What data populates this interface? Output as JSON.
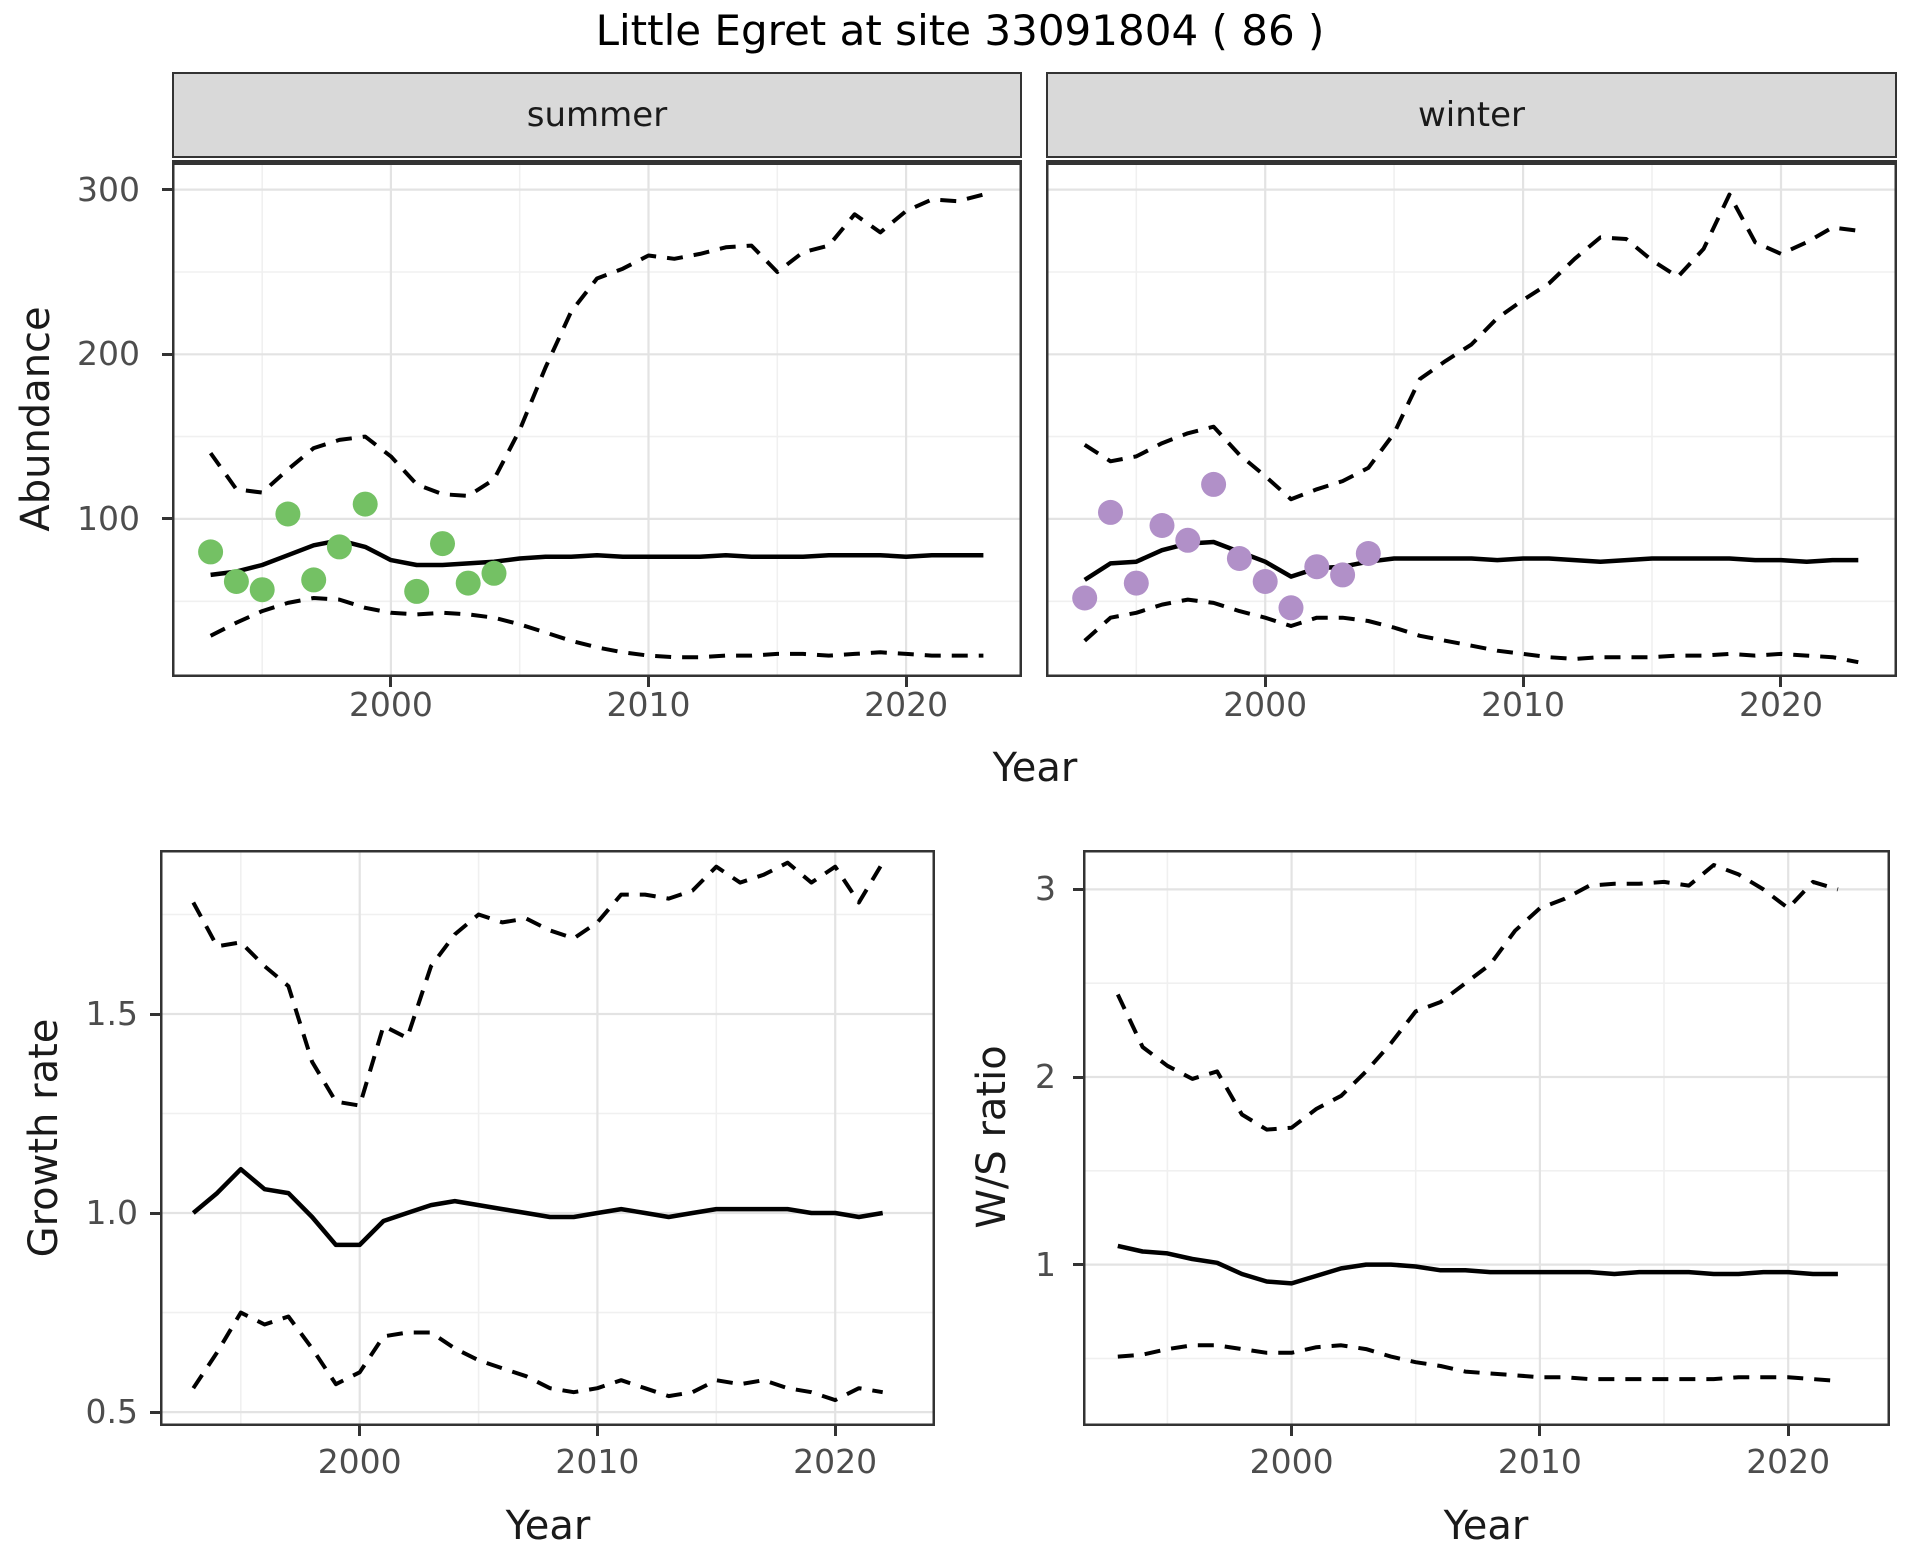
{
  "title": "Little Egret at site 33091804 ( 86 )",
  "axis": {
    "abundance_label": "Abundance",
    "year_label": "Year",
    "growth_label": "Growth rate",
    "ws_label": "W/S ratio"
  },
  "facets": {
    "summer_label": "summer",
    "winter_label": "winter"
  },
  "colors": {
    "summer_point": "#74c164",
    "winter_point": "#b190c8",
    "line": "#000000",
    "strip_bg": "#d9d9d9",
    "panel_border": "#333333",
    "grid_major": "#e3e3e3",
    "grid_minor": "#f0f0f0",
    "tick_text": "#4d4d4d"
  },
  "chart_data": [
    {
      "id": "abundance-summer",
      "type": "line",
      "facet": "summer",
      "title": "Little Egret abundance, summer facet",
      "xlabel": "Year",
      "ylabel": "Abundance",
      "xlim": [
        1991.5,
        2024.5
      ],
      "ylim": [
        4,
        318
      ],
      "x_ticks": {
        "values": [
          2000,
          2010,
          2020
        ],
        "labels": [
          "2000",
          "2010",
          "2020"
        ]
      },
      "y_ticks": {
        "values": [
          100,
          200,
          300
        ],
        "labels": [
          "100",
          "200",
          "300"
        ]
      },
      "x_minor": [
        1995,
        2005,
        2015
      ],
      "y_minor": [
        50,
        150,
        250
      ],
      "grid": true,
      "legend": "none",
      "x": [
        1993,
        1994,
        1995,
        1996,
        1997,
        1998,
        1999,
        2000,
        2001,
        2002,
        2003,
        2004,
        2005,
        2006,
        2007,
        2008,
        2009,
        2010,
        2011,
        2012,
        2013,
        2014,
        2015,
        2016,
        2017,
        2018,
        2019,
        2020,
        2021,
        2022,
        2023
      ],
      "series": [
        {
          "name": "mean",
          "style": "solid",
          "values": [
            66,
            68,
            72,
            78,
            84,
            87,
            83,
            75,
            72,
            72,
            73,
            74,
            76,
            77,
            77,
            78,
            77,
            77,
            77,
            77,
            78,
            77,
            77,
            77,
            78,
            78,
            78,
            77,
            78,
            78,
            78
          ]
        },
        {
          "name": "upper_ci",
          "style": "dashed",
          "values": [
            140,
            118,
            116,
            130,
            143,
            148,
            150,
            138,
            121,
            115,
            114,
            124,
            154,
            192,
            226,
            246,
            252,
            260,
            258,
            261,
            265,
            266,
            250,
            262,
            266,
            285,
            274,
            287,
            294,
            293,
            297
          ]
        },
        {
          "name": "lower_ci",
          "style": "dashed",
          "values": [
            29,
            37,
            44,
            49,
            52,
            51,
            46,
            43,
            42,
            43,
            42,
            40,
            36,
            31,
            26,
            22,
            19,
            17,
            16,
            16,
            17,
            17,
            18,
            18,
            17,
            18,
            19,
            18,
            17,
            17,
            17
          ]
        }
      ],
      "points": {
        "name": "observed_counts",
        "color": "#74c164",
        "x": [
          1993,
          1994,
          1995,
          1996,
          1997,
          1998,
          1999,
          2001,
          2002,
          2003,
          2004
        ],
        "y": [
          80,
          62,
          57,
          103,
          63,
          83,
          109,
          56,
          85,
          61,
          67
        ]
      }
    },
    {
      "id": "abundance-winter",
      "type": "line",
      "facet": "winter",
      "title": "Little Egret abundance, winter facet",
      "xlabel": "Year",
      "ylabel": "Abundance",
      "xlim": [
        1991.5,
        2024.5
      ],
      "ylim": [
        4,
        318
      ],
      "x_ticks": {
        "values": [
          2000,
          2010,
          2020
        ],
        "labels": [
          "2000",
          "2010",
          "2020"
        ]
      },
      "y_ticks": {
        "values": [
          100,
          200,
          300
        ],
        "labels": [
          "100",
          "200",
          "300"
        ]
      },
      "x_minor": [
        1995,
        2005,
        2015
      ],
      "y_minor": [
        50,
        150,
        250
      ],
      "grid": true,
      "legend": "none",
      "x": [
        1993,
        1994,
        1995,
        1996,
        1997,
        1998,
        1999,
        2000,
        2001,
        2002,
        2003,
        2004,
        2005,
        2006,
        2007,
        2008,
        2009,
        2010,
        2011,
        2012,
        2013,
        2014,
        2015,
        2016,
        2017,
        2018,
        2019,
        2020,
        2021,
        2022,
        2023
      ],
      "series": [
        {
          "name": "mean",
          "style": "solid",
          "values": [
            63,
            73,
            74,
            81,
            85,
            86,
            80,
            74,
            65,
            70,
            71,
            74,
            76,
            76,
            76,
            76,
            75,
            76,
            76,
            75,
            74,
            75,
            76,
            76,
            76,
            76,
            75,
            75,
            74,
            75,
            75
          ]
        },
        {
          "name": "upper_ci",
          "style": "dashed",
          "values": [
            145,
            135,
            138,
            146,
            152,
            156,
            139,
            126,
            112,
            118,
            123,
            131,
            152,
            185,
            196,
            206,
            222,
            233,
            243,
            258,
            271,
            270,
            257,
            247,
            264,
            297,
            268,
            261,
            268,
            277,
            275
          ]
        },
        {
          "name": "lower_ci",
          "style": "dashed",
          "values": [
            26,
            40,
            43,
            48,
            51,
            49,
            44,
            40,
            35,
            40,
            40,
            38,
            34,
            29,
            26,
            23,
            20,
            18,
            16,
            15,
            16,
            16,
            16,
            17,
            17,
            18,
            17,
            18,
            17,
            16,
            13
          ]
        }
      ],
      "points": {
        "name": "observed_counts",
        "color": "#b190c8",
        "x": [
          1993,
          1994,
          1995,
          1996,
          1997,
          1998,
          1999,
          2000,
          2001,
          2002,
          2003,
          2004
        ],
        "y": [
          52,
          104,
          61,
          96,
          87,
          121,
          76,
          62,
          46,
          71,
          66,
          79
        ]
      }
    },
    {
      "id": "growth-rate",
      "type": "line",
      "facet": null,
      "title": "Growth rate",
      "xlabel": "Year",
      "ylabel": "Growth rate",
      "xlim": [
        1991.6,
        2024.2
      ],
      "ylim": [
        0.465,
        1.912
      ],
      "x_ticks": {
        "values": [
          2000,
          2010,
          2020
        ],
        "labels": [
          "2000",
          "2010",
          "2020"
        ]
      },
      "y_ticks": {
        "values": [
          0.5,
          1.0,
          1.5
        ],
        "labels": [
          "0.5",
          "1.0",
          "1.5"
        ]
      },
      "x_minor": [
        1995,
        2005,
        2015
      ],
      "y_minor": [
        0.75,
        1.25,
        1.75
      ],
      "grid": true,
      "legend": "none",
      "x": [
        1993,
        1994,
        1995,
        1996,
        1997,
        1998,
        1999,
        2000,
        2001,
        2002,
        2003,
        2004,
        2005,
        2006,
        2007,
        2008,
        2009,
        2010,
        2011,
        2012,
        2013,
        2014,
        2015,
        2016,
        2017,
        2018,
        2019,
        2020,
        2021,
        2022
      ],
      "series": [
        {
          "name": "mean",
          "style": "solid",
          "values": [
            1.0,
            1.05,
            1.11,
            1.06,
            1.05,
            0.99,
            0.92,
            0.92,
            0.98,
            1.0,
            1.02,
            1.03,
            1.02,
            1.01,
            1.0,
            0.99,
            0.99,
            1.0,
            1.01,
            1.0,
            0.99,
            1.0,
            1.01,
            1.01,
            1.01,
            1.01,
            1.0,
            1.0,
            0.99,
            1.0
          ]
        },
        {
          "name": "upper_ci",
          "style": "dashed",
          "values": [
            1.78,
            1.67,
            1.68,
            1.62,
            1.57,
            1.38,
            1.28,
            1.27,
            1.47,
            1.44,
            1.62,
            1.7,
            1.75,
            1.73,
            1.74,
            1.71,
            1.69,
            1.73,
            1.8,
            1.8,
            1.79,
            1.81,
            1.87,
            1.83,
            1.85,
            1.88,
            1.83,
            1.87,
            1.78,
            1.88
          ]
        },
        {
          "name": "lower_ci",
          "style": "dashed",
          "values": [
            0.56,
            0.65,
            0.75,
            0.72,
            0.74,
            0.66,
            0.57,
            0.6,
            0.69,
            0.7,
            0.7,
            0.66,
            0.63,
            0.61,
            0.59,
            0.56,
            0.55,
            0.56,
            0.58,
            0.56,
            0.54,
            0.55,
            0.58,
            0.57,
            0.58,
            0.56,
            0.55,
            0.53,
            0.56,
            0.55
          ]
        }
      ]
    },
    {
      "id": "ws-ratio",
      "type": "line",
      "facet": null,
      "title": "Winter/Summer ratio",
      "xlabel": "Year",
      "ylabel": "W/S ratio",
      "xlim": [
        1991.6,
        2024.1
      ],
      "ylim": [
        0.14,
        3.21
      ],
      "x_ticks": {
        "values": [
          2000,
          2010,
          2020
        ],
        "labels": [
          "2000",
          "2010",
          "2020"
        ]
      },
      "y_ticks": {
        "values": [
          1,
          2,
          3
        ],
        "labels": [
          "1",
          "2",
          "3"
        ]
      },
      "x_minor": [
        1995,
        2005,
        2015
      ],
      "y_minor": [
        0.5,
        1.5,
        2.5
      ],
      "grid": true,
      "legend": "none",
      "x": [
        1993,
        1994,
        1995,
        1996,
        1997,
        1998,
        1999,
        2000,
        2001,
        2002,
        2003,
        2004,
        2005,
        2006,
        2007,
        2008,
        2009,
        2010,
        2011,
        2012,
        2013,
        2014,
        2015,
        2016,
        2017,
        2018,
        2019,
        2020,
        2021,
        2022
      ],
      "series": [
        {
          "name": "mean",
          "style": "solid",
          "values": [
            1.1,
            1.07,
            1.06,
            1.03,
            1.01,
            0.95,
            0.91,
            0.9,
            0.94,
            0.98,
            1.0,
            1.0,
            0.99,
            0.97,
            0.97,
            0.96,
            0.96,
            0.96,
            0.96,
            0.96,
            0.95,
            0.96,
            0.96,
            0.96,
            0.95,
            0.95,
            0.96,
            0.96,
            0.95,
            0.95
          ]
        },
        {
          "name": "upper_ci",
          "style": "dashed",
          "values": [
            2.44,
            2.16,
            2.06,
            1.99,
            2.03,
            1.8,
            1.72,
            1.73,
            1.83,
            1.9,
            2.03,
            2.18,
            2.35,
            2.4,
            2.5,
            2.6,
            2.78,
            2.9,
            2.95,
            3.02,
            3.03,
            3.03,
            3.04,
            3.02,
            3.13,
            3.08,
            3.0,
            2.9,
            3.04,
            3.0
          ]
        },
        {
          "name": "lower_ci",
          "style": "dashed",
          "values": [
            0.51,
            0.52,
            0.55,
            0.57,
            0.57,
            0.55,
            0.53,
            0.53,
            0.56,
            0.57,
            0.55,
            0.51,
            0.48,
            0.46,
            0.43,
            0.42,
            0.41,
            0.4,
            0.4,
            0.39,
            0.39,
            0.39,
            0.39,
            0.39,
            0.39,
            0.4,
            0.4,
            0.4,
            0.39,
            0.38
          ]
        }
      ]
    }
  ]
}
